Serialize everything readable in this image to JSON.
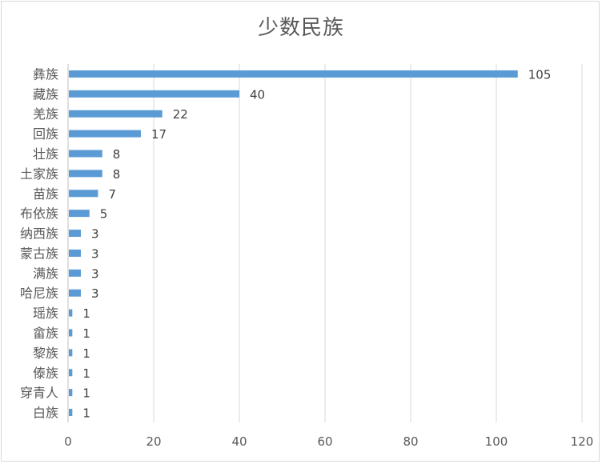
{
  "chart_data": {
    "type": "bar",
    "orientation": "horizontal",
    "title": "少数民族",
    "xlabel": "",
    "ylabel": "",
    "xlim": [
      0,
      120
    ],
    "x_ticks": [
      0,
      20,
      40,
      60,
      80,
      100,
      120
    ],
    "grid": "vertical",
    "legend": "none",
    "data_labels": true,
    "categories": [
      "彝族",
      "藏族",
      "羌族",
      "回族",
      "壮族",
      "土家族",
      "苗族",
      "布依族",
      "纳西族",
      "蒙古族",
      "满族",
      "哈尼族",
      "瑶族",
      "畲族",
      "黎族",
      "傣族",
      "穿青人",
      "白族"
    ],
    "values": [
      105,
      40,
      22,
      17,
      8,
      8,
      7,
      5,
      3,
      3,
      3,
      3,
      1,
      1,
      1,
      1,
      1,
      1
    ],
    "colors": {
      "bar": "#5b9bd5",
      "grid": "#d9d9d9",
      "axis": "#bfbfbf",
      "text": "#595959"
    }
  }
}
